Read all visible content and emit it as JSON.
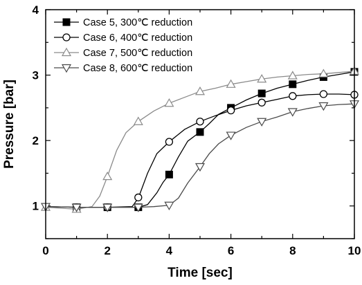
{
  "chart_data": {
    "type": "line",
    "xlabel": "Time [sec]",
    "ylabel": "Pressure [bar]",
    "xlim": [
      0,
      10
    ],
    "ylim": [
      0.5,
      4
    ],
    "xticks": [
      0,
      2,
      4,
      6,
      8,
      10
    ],
    "yticks": [
      1,
      2,
      3,
      4
    ],
    "xtick_labels": [
      "0",
      "2",
      "4",
      "6",
      "8",
      "10"
    ],
    "ytick_labels": [
      "1",
      "2",
      "3",
      "4"
    ],
    "grid": false,
    "legend_position": "top-left",
    "series": [
      {
        "name": "Case 5, 300℃ reduction",
        "color": "#000000",
        "marker": "square-filled",
        "points": [
          [
            0,
            0.99
          ],
          [
            1,
            0.98
          ],
          [
            2,
            0.98
          ],
          [
            3,
            0.98
          ],
          [
            3.3,
            1.02
          ],
          [
            3.6,
            1.2
          ],
          [
            3.8,
            1.36
          ],
          [
            4,
            1.48
          ],
          [
            4.3,
            1.75
          ],
          [
            4.6,
            1.99
          ],
          [
            5,
            2.13
          ],
          [
            5.3,
            2.26
          ],
          [
            5.6,
            2.4
          ],
          [
            6,
            2.5
          ],
          [
            6.5,
            2.62
          ],
          [
            7,
            2.72
          ],
          [
            7.5,
            2.8
          ],
          [
            8,
            2.86
          ],
          [
            8.5,
            2.92
          ],
          [
            9,
            2.97
          ],
          [
            9.5,
            3.01
          ],
          [
            10,
            3.05
          ]
        ],
        "marker_points": [
          [
            1,
            0.98
          ],
          [
            2,
            0.98
          ],
          [
            3,
            0.98
          ],
          [
            4,
            1.48
          ],
          [
            5,
            2.13
          ],
          [
            6,
            2.5
          ],
          [
            7,
            2.72
          ],
          [
            8,
            2.86
          ],
          [
            9,
            2.97
          ],
          [
            10,
            3.05
          ]
        ]
      },
      {
        "name": "Case 6, 400℃ reduction",
        "color": "#000000",
        "marker": "circle-open",
        "points": [
          [
            0,
            0.99
          ],
          [
            1,
            0.98
          ],
          [
            2,
            0.98
          ],
          [
            2.8,
            0.99
          ],
          [
            3,
            1.12
          ],
          [
            3.3,
            1.5
          ],
          [
            3.6,
            1.8
          ],
          [
            4,
            1.98
          ],
          [
            4.5,
            2.17
          ],
          [
            5,
            2.29
          ],
          [
            5.5,
            2.38
          ],
          [
            6,
            2.46
          ],
          [
            6.5,
            2.53
          ],
          [
            7,
            2.58
          ],
          [
            7.5,
            2.63
          ],
          [
            8,
            2.68
          ],
          [
            8.5,
            2.7
          ],
          [
            9,
            2.71
          ],
          [
            9.5,
            2.71
          ],
          [
            10,
            2.7
          ]
        ],
        "marker_points": [
          [
            1,
            0.98
          ],
          [
            2,
            0.98
          ],
          [
            3,
            1.13
          ],
          [
            4,
            1.98
          ],
          [
            5,
            2.29
          ],
          [
            6,
            2.46
          ],
          [
            7,
            2.58
          ],
          [
            8,
            2.68
          ],
          [
            9,
            2.71
          ],
          [
            10,
            2.7
          ]
        ]
      },
      {
        "name": "Case 7, 500℃ reduction",
        "color": "#8a8a8a",
        "marker": "triangle-up-open",
        "points": [
          [
            0,
            0.98
          ],
          [
            1,
            0.95
          ],
          [
            1.5,
            0.99
          ],
          [
            1.75,
            1.15
          ],
          [
            2,
            1.45
          ],
          [
            2.3,
            1.85
          ],
          [
            2.6,
            2.12
          ],
          [
            3,
            2.29
          ],
          [
            3.5,
            2.45
          ],
          [
            4,
            2.57
          ],
          [
            4.5,
            2.66
          ],
          [
            5,
            2.75
          ],
          [
            5.5,
            2.8
          ],
          [
            6,
            2.86
          ],
          [
            6.5,
            2.9
          ],
          [
            7,
            2.94
          ],
          [
            7.5,
            2.97
          ],
          [
            8,
            2.99
          ],
          [
            8.5,
            3.01
          ],
          [
            9,
            3.02
          ],
          [
            9.5,
            3.04
          ],
          [
            10,
            3.06
          ]
        ],
        "marker_points": [
          [
            0,
            0.98
          ],
          [
            1,
            0.95
          ],
          [
            2,
            1.45
          ],
          [
            3,
            2.29
          ],
          [
            4,
            2.57
          ],
          [
            5,
            2.75
          ],
          [
            6,
            2.86
          ],
          [
            7,
            2.94
          ],
          [
            8,
            2.99
          ],
          [
            9,
            3.02
          ],
          [
            10,
            3.06
          ]
        ]
      },
      {
        "name": "Case 8, 600℃ reduction",
        "color": "#4a4a4a",
        "marker": "triangle-down-open",
        "points": [
          [
            0,
            0.99
          ],
          [
            1,
            0.98
          ],
          [
            2,
            0.98
          ],
          [
            3,
            0.98
          ],
          [
            3.5,
            0.99
          ],
          [
            4,
            1.01
          ],
          [
            4.3,
            1.12
          ],
          [
            4.6,
            1.35
          ],
          [
            5,
            1.6
          ],
          [
            5.3,
            1.8
          ],
          [
            5.6,
            1.95
          ],
          [
            6,
            2.08
          ],
          [
            6.5,
            2.2
          ],
          [
            7,
            2.29
          ],
          [
            7.5,
            2.36
          ],
          [
            8,
            2.44
          ],
          [
            8.5,
            2.49
          ],
          [
            9,
            2.53
          ],
          [
            9.5,
            2.55
          ],
          [
            10,
            2.56
          ]
        ],
        "marker_points": [
          [
            0,
            0.99
          ],
          [
            1,
            0.98
          ],
          [
            2,
            0.98
          ],
          [
            3,
            0.98
          ],
          [
            4,
            1.01
          ],
          [
            5,
            1.6
          ],
          [
            6,
            2.08
          ],
          [
            7,
            2.29
          ],
          [
            8,
            2.44
          ],
          [
            9,
            2.53
          ],
          [
            10,
            2.56
          ]
        ]
      }
    ]
  }
}
